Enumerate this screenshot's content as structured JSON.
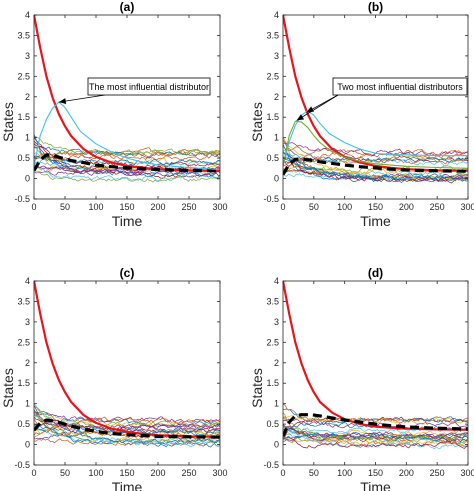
{
  "chart_data": [
    {
      "type": "line",
      "title": "(a)",
      "xlabel": "Time",
      "ylabel": "States",
      "xlim": [
        0,
        300
      ],
      "ylim": [
        -0.5,
        4
      ],
      "xticks": [
        "0",
        "50",
        "100",
        "150",
        "200",
        "250",
        "300"
      ],
      "yticks": [
        "-0.5",
        "0",
        "0.5",
        "1",
        "1.5",
        "2",
        "2.5",
        "3",
        "3.5",
        "4"
      ],
      "grid": false,
      "annotation": {
        "text": "The most influential distributor",
        "points_to": [
          [
            40,
            1.87
          ]
        ]
      },
      "series": [
        {
          "role": "decay",
          "color": "#e8141b",
          "x": [
            0,
            10,
            20,
            30,
            40,
            50,
            60,
            80,
            100,
            125,
            150,
            175,
            200,
            250,
            300
          ],
          "y": [
            4,
            3.2,
            2.5,
            1.98,
            1.58,
            1.28,
            1.04,
            0.72,
            0.53,
            0.39,
            0.31,
            0.26,
            0.23,
            0.2,
            0.19
          ]
        },
        {
          "role": "mean",
          "color": "#000000",
          "x": [
            0,
            10,
            20,
            30,
            45,
            60,
            80,
            100,
            125,
            150,
            175,
            200,
            250,
            300
          ],
          "y": [
            0.2,
            0.45,
            0.58,
            0.57,
            0.5,
            0.44,
            0.39,
            0.33,
            0.29,
            0.26,
            0.24,
            0.22,
            0.2,
            0.19
          ]
        },
        {
          "role": "influential",
          "color": "#3fc1ea",
          "x": [
            0,
            10,
            20,
            30,
            40,
            50,
            60,
            75,
            100,
            125,
            150,
            175,
            200,
            250,
            300
          ],
          "y": [
            0.3,
            1.05,
            1.45,
            1.72,
            1.87,
            1.74,
            1.5,
            1.15,
            0.85,
            0.65,
            0.5,
            0.4,
            0.33,
            0.27,
            0.22
          ]
        }
      ]
    },
    {
      "type": "line",
      "title": "(b)",
      "xlabel": "Time",
      "ylabel": "States",
      "xlim": [
        0,
        300
      ],
      "ylim": [
        -0.5,
        4
      ],
      "xticks": [
        "0",
        "50",
        "100",
        "150",
        "200",
        "250",
        "300"
      ],
      "yticks": [
        "-0.5",
        "0",
        "0.5",
        "1",
        "1.5",
        "2",
        "2.5",
        "3",
        "3.5",
        "4"
      ],
      "grid": false,
      "annotation": {
        "text": "Two most influential distributors",
        "points_to": [
          [
            22,
            1.42
          ],
          [
            38,
            1.62
          ]
        ]
      },
      "series": [
        {
          "role": "decay",
          "color": "#e8141b",
          "x": [
            0,
            10,
            20,
            30,
            40,
            50,
            60,
            80,
            100,
            125,
            150,
            175,
            200,
            250,
            300
          ],
          "y": [
            4,
            3.2,
            2.5,
            1.98,
            1.58,
            1.28,
            1.04,
            0.72,
            0.53,
            0.39,
            0.31,
            0.26,
            0.23,
            0.2,
            0.19
          ]
        },
        {
          "role": "mean",
          "color": "#000000",
          "x": [
            0,
            10,
            20,
            30,
            45,
            60,
            80,
            100,
            125,
            150,
            175,
            200,
            250,
            300
          ],
          "y": [
            0.1,
            0.35,
            0.47,
            0.48,
            0.45,
            0.41,
            0.37,
            0.33,
            0.29,
            0.26,
            0.23,
            0.21,
            0.19,
            0.18
          ]
        },
        {
          "role": "influential",
          "color": "#3fc1ea",
          "x": [
            0,
            10,
            20,
            30,
            40,
            50,
            60,
            75,
            100,
            125,
            150,
            175,
            200,
            250,
            300
          ],
          "y": [
            0.3,
            0.9,
            1.3,
            1.55,
            1.66,
            1.55,
            1.35,
            1.1,
            0.88,
            0.72,
            0.62,
            0.58,
            0.58,
            0.56,
            0.56
          ]
        },
        {
          "role": "influential",
          "color": "#77ac30",
          "x": [
            0,
            10,
            20,
            30,
            40,
            50,
            60,
            75,
            100,
            125,
            150,
            175,
            200,
            250,
            300
          ],
          "y": [
            0.3,
            1.05,
            1.4,
            1.38,
            1.25,
            1.05,
            0.88,
            0.7,
            0.52,
            0.42,
            0.36,
            0.33,
            0.3,
            0.27,
            0.25
          ]
        }
      ]
    },
    {
      "type": "line",
      "title": "(c)",
      "xlabel": "Time",
      "ylabel": "States",
      "xlim": [
        0,
        300
      ],
      "ylim": [
        -0.5,
        4
      ],
      "xticks": [
        "0",
        "50",
        "100",
        "150",
        "200",
        "250",
        "300"
      ],
      "yticks": [
        "-0.5",
        "0",
        "0.5",
        "1",
        "1.5",
        "2",
        "2.5",
        "3",
        "3.5",
        "4"
      ],
      "grid": false,
      "series": [
        {
          "role": "decay",
          "color": "#e8141b",
          "x": [
            0,
            10,
            20,
            30,
            40,
            50,
            60,
            80,
            100,
            125,
            150,
            175,
            200,
            250,
            300
          ],
          "y": [
            4,
            3.2,
            2.5,
            1.98,
            1.58,
            1.28,
            1.04,
            0.72,
            0.53,
            0.39,
            0.31,
            0.26,
            0.23,
            0.2,
            0.19
          ]
        },
        {
          "role": "mean",
          "color": "#000000",
          "x": [
            0,
            10,
            20,
            30,
            45,
            60,
            80,
            100,
            125,
            150,
            175,
            200,
            250,
            300
          ],
          "y": [
            0.35,
            0.52,
            0.6,
            0.58,
            0.52,
            0.45,
            0.38,
            0.32,
            0.27,
            0.24,
            0.22,
            0.2,
            0.19,
            0.18
          ]
        }
      ]
    },
    {
      "type": "line",
      "title": "(d)",
      "xlabel": "Time",
      "ylabel": "States",
      "xlim": [
        0,
        300
      ],
      "ylim": [
        -0.5,
        4
      ],
      "xticks": [
        "0",
        "50",
        "100",
        "150",
        "200",
        "250",
        "300"
      ],
      "yticks": [
        "-0.5",
        "0",
        "0.5",
        "1",
        "1.5",
        "2",
        "2.5",
        "3",
        "3.5",
        "4"
      ],
      "grid": false,
      "series": [
        {
          "role": "decay",
          "color": "#e8141b",
          "x": [
            0,
            10,
            20,
            30,
            40,
            50,
            60,
            80,
            100,
            125,
            150,
            175,
            200,
            250,
            300
          ],
          "y": [
            4,
            3.2,
            2.5,
            1.98,
            1.58,
            1.28,
            1.04,
            0.78,
            0.62,
            0.5,
            0.44,
            0.41,
            0.39,
            0.37,
            0.36
          ]
        },
        {
          "role": "mean",
          "color": "#000000",
          "x": [
            0,
            10,
            20,
            30,
            45,
            60,
            80,
            100,
            125,
            150,
            175,
            200,
            250,
            300
          ],
          "y": [
            0.2,
            0.55,
            0.7,
            0.73,
            0.73,
            0.7,
            0.65,
            0.6,
            0.55,
            0.5,
            0.46,
            0.43,
            0.4,
            0.38
          ]
        }
      ]
    }
  ],
  "background_trajectories": {
    "count": 22,
    "colors": [
      "#0072bd",
      "#d95319",
      "#edb120",
      "#7e2f8e",
      "#77ac30",
      "#4dbeee",
      "#a2142f"
    ],
    "start_range": [
      0.1,
      1.05
    ],
    "end_range": [
      -0.05,
      0.65
    ]
  }
}
